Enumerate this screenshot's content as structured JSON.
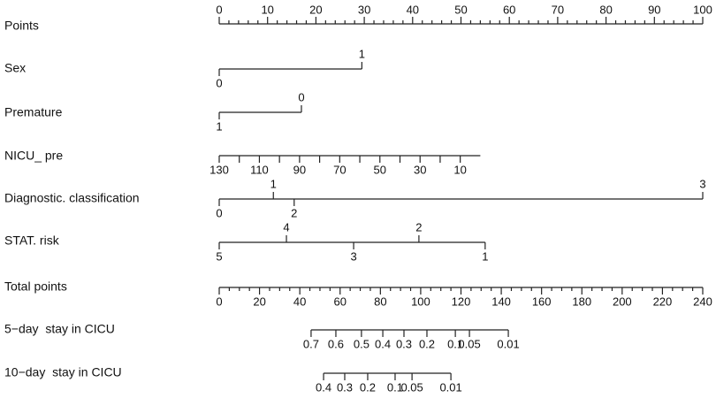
{
  "chart_data": {
    "type": "nomogram",
    "axes": [
      {
        "label": "Points",
        "kind": "points",
        "xlim": [
          0,
          100
        ],
        "ticks": [
          0,
          10,
          20,
          30,
          40,
          50,
          60,
          70,
          80,
          90,
          100
        ],
        "minor_ticks": [
          2,
          4,
          6,
          8,
          12,
          14,
          16,
          18,
          22,
          24,
          26,
          28,
          32,
          34,
          36,
          38,
          42,
          44,
          46,
          48,
          52,
          54,
          56,
          58,
          62,
          64,
          66,
          68,
          72,
          74,
          76,
          78,
          82,
          84,
          86,
          88,
          92,
          94,
          96,
          98
        ]
      },
      {
        "label": "Sex",
        "kind": "category",
        "categories": [
          "0",
          "1"
        ],
        "points": [
          0,
          29.5
        ],
        "label_sides": [
          "below",
          "above"
        ]
      },
      {
        "label": "Premature",
        "kind": "category",
        "categories": [
          "1",
          "0"
        ],
        "points": [
          0,
          17
        ],
        "label_sides": [
          "below",
          "above"
        ]
      },
      {
        "label": "NICU_ pre",
        "kind": "continuous",
        "xlim": [
          130,
          0
        ],
        "points_range": [
          0,
          54
        ],
        "ticks": [
          130,
          110,
          90,
          70,
          50,
          30,
          10
        ],
        "minor_ticks": [
          120,
          100,
          80,
          60,
          40,
          20
        ]
      },
      {
        "label": "Diagnostic. classification",
        "kind": "category",
        "categories": [
          "0",
          "1",
          "2",
          "3"
        ],
        "points": [
          0,
          11.2,
          15.5,
          100
        ],
        "label_sides": [
          "below",
          "above",
          "below",
          "above"
        ]
      },
      {
        "label": "STAT. risk",
        "kind": "category",
        "categories": [
          "5",
          "4",
          "3",
          "2",
          "1"
        ],
        "points": [
          0,
          13.9,
          27.8,
          41.3,
          55
        ],
        "label_sides": [
          "below",
          "above",
          "below",
          "above",
          "below"
        ]
      },
      {
        "label": "Total points",
        "kind": "total",
        "xlim": [
          0,
          240
        ],
        "ticks": [
          0,
          20,
          40,
          60,
          80,
          100,
          120,
          140,
          160,
          180,
          200,
          220,
          240
        ],
        "minor_ticks": [
          5,
          10,
          15,
          25,
          30,
          35,
          45,
          50,
          55,
          65,
          70,
          75,
          85,
          90,
          95,
          105,
          110,
          115,
          125,
          130,
          135,
          145,
          150,
          155,
          165,
          170,
          175,
          185,
          190,
          195,
          205,
          210,
          215,
          225,
          230,
          235
        ]
      },
      {
        "label": "5−day  stay in CICU",
        "kind": "risk",
        "ticks": [
          0.7,
          0.6,
          0.5,
          0.4,
          0.3,
          0.2,
          0.1,
          0.05,
          0.01
        ],
        "total_points": [
          45.6,
          57.9,
          70.6,
          81.2,
          91.7,
          103.1,
          117.2,
          124.2,
          143.5
        ]
      },
      {
        "label": "10−day  stay in CICU",
        "kind": "risk",
        "ticks": [
          0.4,
          0.3,
          0.2,
          0.1,
          0.05,
          0.01
        ],
        "total_points": [
          51.8,
          62.3,
          73.7,
          87.3,
          95.7,
          115.0
        ]
      }
    ]
  }
}
